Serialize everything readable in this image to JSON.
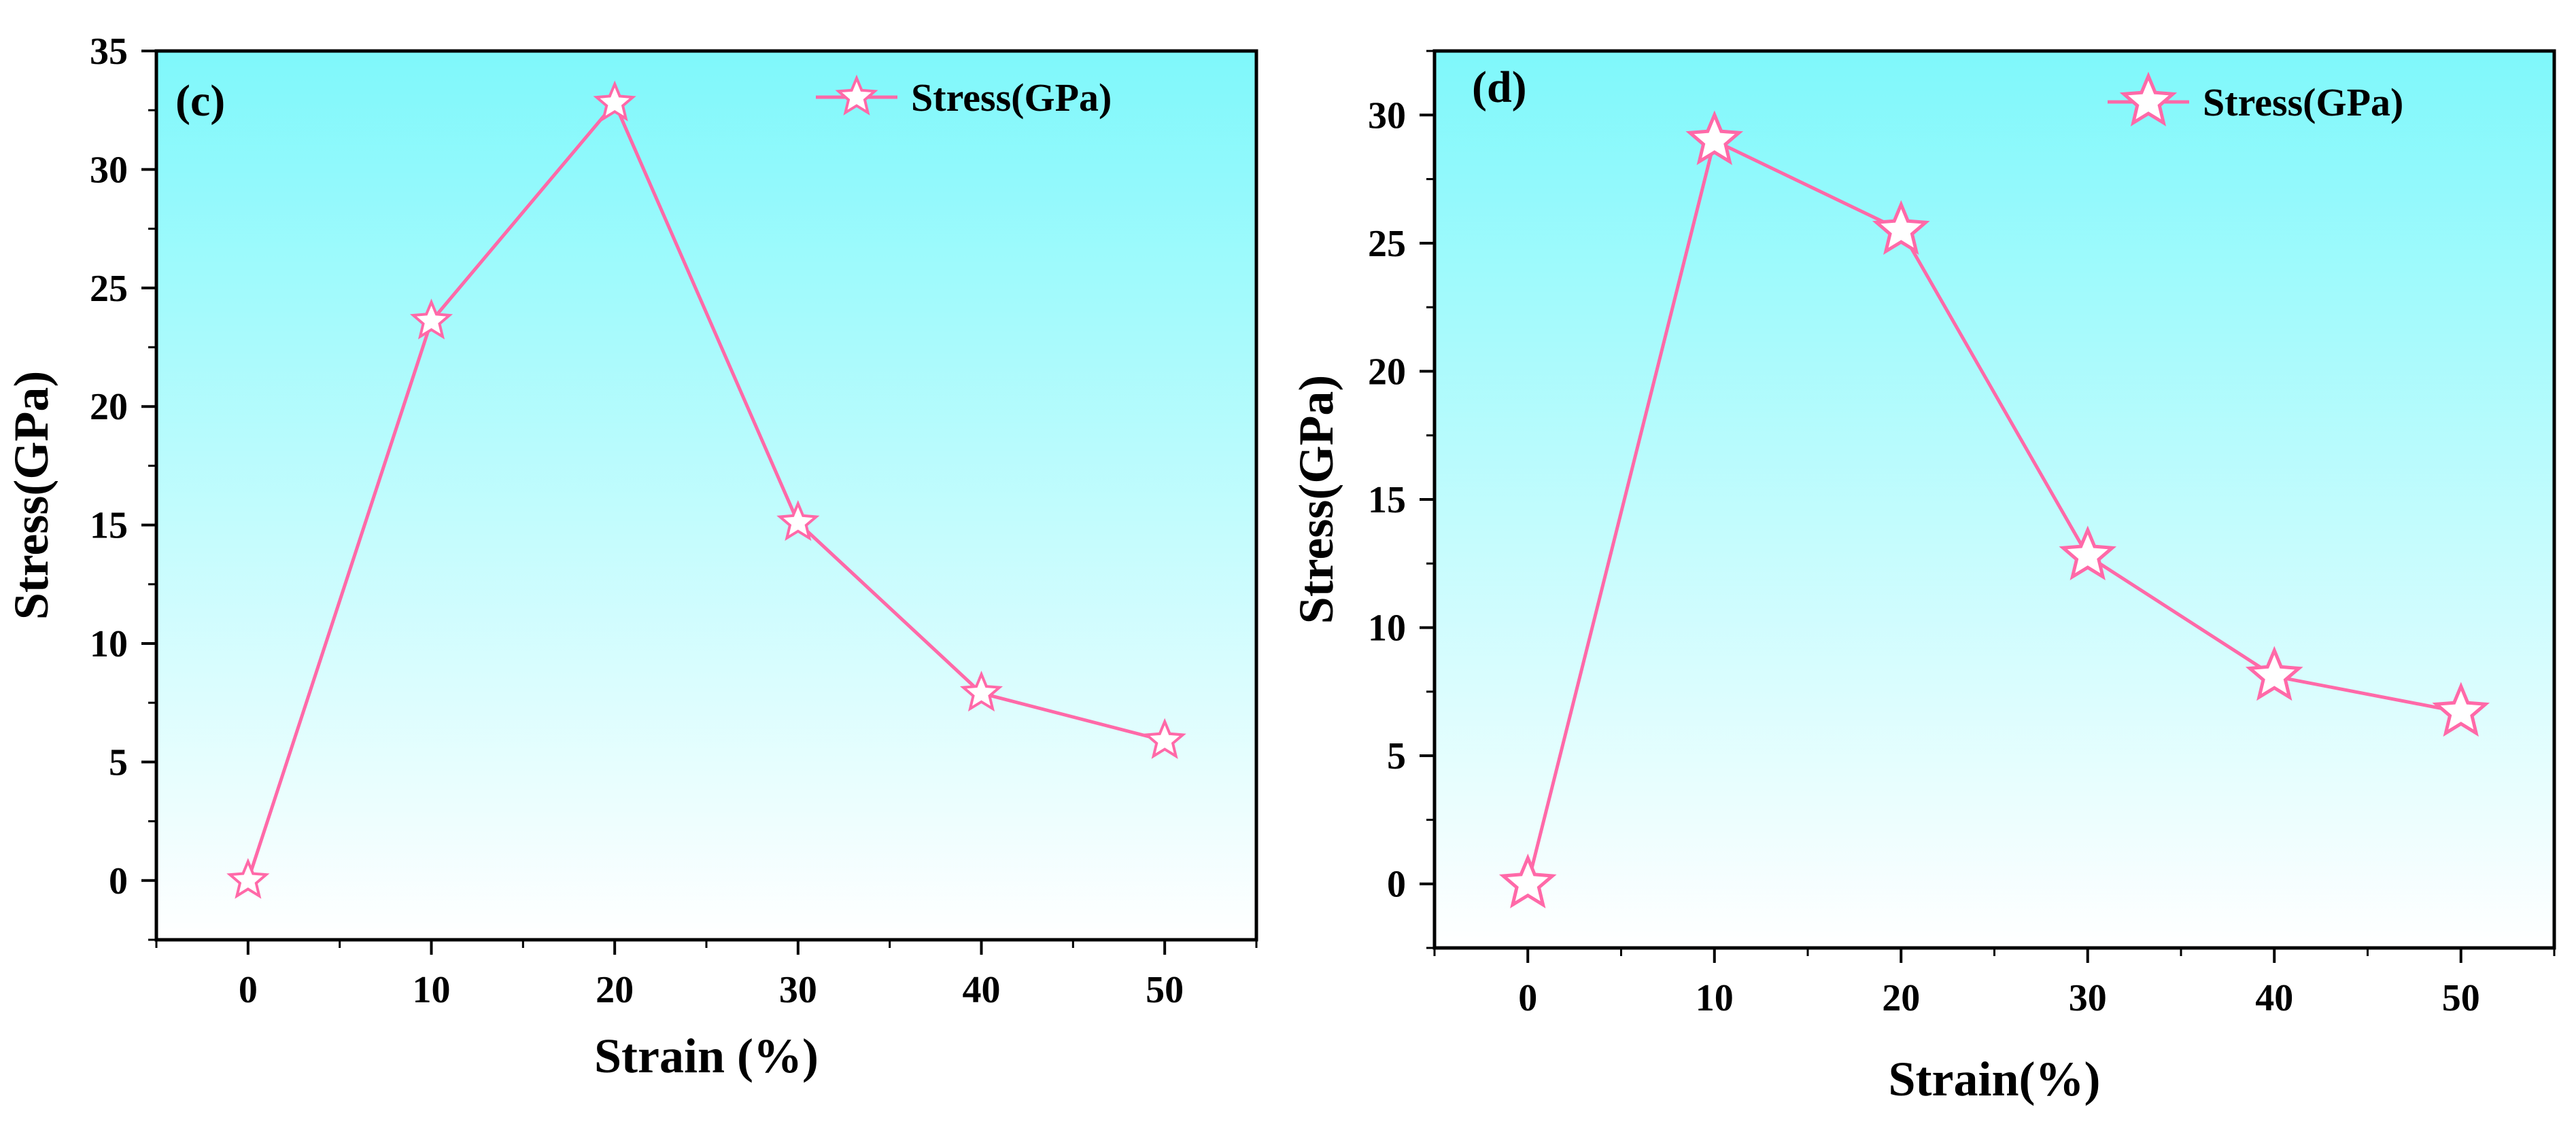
{
  "chart_data": [
    {
      "type": "line",
      "panel_label": "(c)",
      "xlabel": "Strain (%)",
      "ylabel": "Stress(GPa)",
      "x": [
        0,
        10,
        20,
        30,
        40,
        50
      ],
      "xlim": [
        -5,
        55
      ],
      "ylim": [
        -2.5,
        35
      ],
      "xticks": [
        0,
        10,
        20,
        30,
        40,
        50
      ],
      "yticks": [
        0,
        5,
        10,
        15,
        20,
        25,
        30,
        35
      ],
      "series": [
        {
          "name": "Stress(GPa)",
          "values": [
            0,
            23.6,
            32.8,
            15.1,
            7.9,
            5.9
          ],
          "color": "#ff69a8",
          "marker": "star"
        }
      ],
      "legend_position": "top-right",
      "background_gradient": [
        "#7ff8fb",
        "#ffffff"
      ],
      "grid": false
    },
    {
      "type": "line",
      "panel_label": "(d)",
      "xlabel": "Strain(%)",
      "ylabel": "Stress(GPa)",
      "x": [
        0,
        10,
        20,
        30,
        40,
        50
      ],
      "xlim": [
        -5,
        55
      ],
      "ylim": [
        -2.5,
        32.5
      ],
      "xticks": [
        0,
        10,
        20,
        30,
        40,
        50
      ],
      "yticks": [
        0,
        5,
        10,
        15,
        20,
        25,
        30
      ],
      "series": [
        {
          "name": "Stress(GPa)",
          "values": [
            0,
            29.0,
            25.5,
            12.8,
            8.1,
            6.7
          ],
          "color": "#ff69a8",
          "marker": "star"
        }
      ],
      "legend_position": "top-right",
      "background_gradient": [
        "#7ff8fb",
        "#ffffff"
      ],
      "grid": false
    }
  ]
}
